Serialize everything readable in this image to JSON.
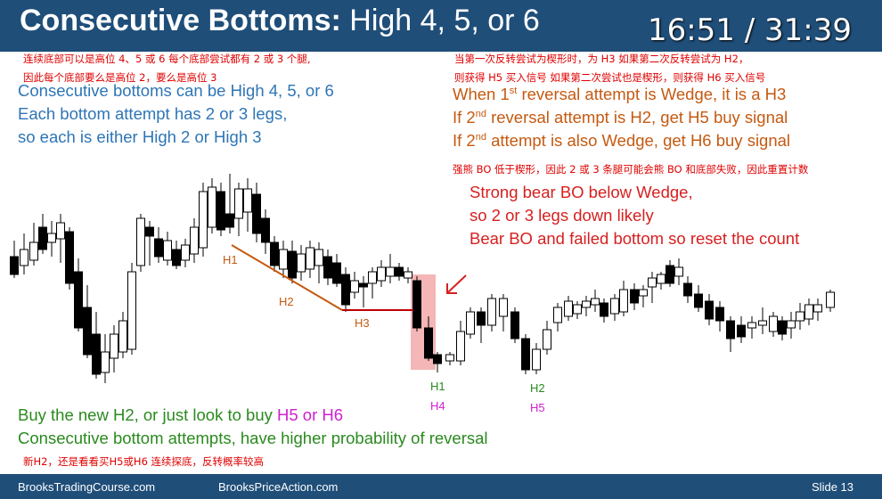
{
  "slide": {
    "title_bold": "Consecutive Bottoms:",
    "title_rest": " High 4, 5, or 6",
    "timer": "16:51 / 31:39"
  },
  "notes_cn": {
    "left_line1": "连续底部可以是高位 4、5 或 6 每个底部尝试都有 2 或 3 个腿,",
    "left_line2": "因此每个底部要么是高位 2，要么是高位 3",
    "right_line1": "当第一次反转尝试为楔形时，为 H3 如果第二次反转尝试为 H2，",
    "right_line2": "则获得 H5 买入信号 如果第二次尝试也是楔形，则获得 H6 买入信号",
    "middle": "强熊 BO 低于楔形，因此 2 或 3 条腿可能会熊 BO 和底部失败，因此重置计数",
    "bottom": "新H2，还是看看买H5或H6 连续探底，反转概率较高"
  },
  "left_text": {
    "line1": "Consecutive bottoms can be High 4, 5, or 6",
    "line2": "Each bottom attempt has 2 or 3 legs,",
    "line3": "so each is either High 2 or High 3"
  },
  "right_text": {
    "line1_a": "When 1",
    "line1_sup": "st",
    "line1_b": " reversal attempt is Wedge, it is a H3",
    "line2_a": "If 2",
    "line2_sup": "nd",
    "line2_b": " reversal attempt is H2, get H5 buy signal",
    "line3_a": "If 2",
    "line3_sup": "nd",
    "line3_b": " attempt is also Wedge, get H6 buy signal"
  },
  "red_text": {
    "line1": "Strong bear BO below Wedge,",
    "line2": "so 2 or 3 legs down likely",
    "line3": "Bear BO and failed bottom so reset the count"
  },
  "bottom_text": {
    "line1_a": "Buy the new H2, or just look to buy ",
    "line1_b": "H5 or H6",
    "line2": "Consecutive bottom attempts, have higher probability of reversal"
  },
  "chart_labels": {
    "h1_wedge": "H1",
    "h2_wedge": "H2",
    "h3_wedge": "H3",
    "h1_new": "H1",
    "h4": "H4",
    "h2_new": "H2",
    "h5": "H5"
  },
  "footer": {
    "left": "BrooksTradingCourse.com",
    "middle": "BrooksPriceAction.com",
    "right": "Slide  13"
  },
  "colors": {
    "header_bg": "#1f4e79",
    "wedge_line": "#c55a11",
    "h3_line": "#c00000",
    "highlight": "#f4b6b6",
    "arrow": "#d62020"
  }
}
